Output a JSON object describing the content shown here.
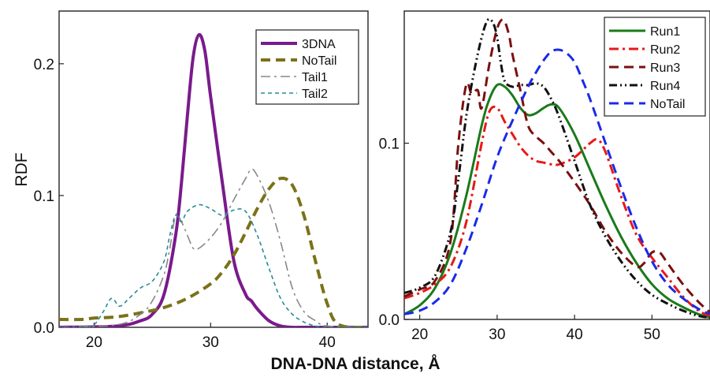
{
  "shared_xlabel": "DNA-DNA distance, Å",
  "chart_data": [
    {
      "type": "line",
      "ylabel": "RDF",
      "xlim": [
        17,
        43.5
      ],
      "ylim": [
        0,
        0.24
      ],
      "xticks": [
        20,
        30,
        40
      ],
      "xtick_labels": [
        "20",
        "30",
        "40"
      ],
      "yticks": [
        0.0,
        0.1,
        0.2
      ],
      "ytick_labels": [
        "0.0",
        "0.1",
        "0.2"
      ],
      "legend": "top-right",
      "series": [
        {
          "name": "3DNA",
          "color": "#7a1a8c",
          "dash": "solid",
          "width": 4,
          "x": [
            17,
            22,
            24,
            25,
            26,
            27,
            27.5,
            28,
            28.5,
            29,
            29.5,
            30,
            31,
            32,
            33,
            33.5,
            34,
            35,
            36,
            37,
            38,
            43.5
          ],
          "y": [
            0,
            0.001,
            0.005,
            0.01,
            0.025,
            0.07,
            0.11,
            0.16,
            0.205,
            0.222,
            0.21,
            0.175,
            0.11,
            0.05,
            0.025,
            0.02,
            0.014,
            0.005,
            0.001,
            0,
            0,
            0
          ]
        },
        {
          "name": "NoTail",
          "color": "#7a7218",
          "dash": "dash",
          "width": 4,
          "x": [
            17,
            19,
            20,
            22,
            24,
            26,
            28,
            30,
            31,
            32,
            33,
            34,
            35,
            36,
            37,
            38,
            39,
            40,
            41,
            43.5
          ],
          "y": [
            0.006,
            0.006,
            0.007,
            0.008,
            0.011,
            0.015,
            0.022,
            0.033,
            0.042,
            0.055,
            0.072,
            0.09,
            0.105,
            0.113,
            0.108,
            0.085,
            0.05,
            0.018,
            0.002,
            0
          ]
        },
        {
          "name": "Tail1",
          "color": "#888888",
          "dash": "dashdot",
          "width": 1.6,
          "x": [
            17,
            22,
            24,
            25,
            26,
            26.5,
            27,
            27.5,
            28,
            28.5,
            29,
            30,
            31,
            32,
            33,
            33.5,
            34,
            35,
            36,
            37,
            38,
            39,
            40,
            43.5
          ],
          "y": [
            0,
            0.002,
            0.01,
            0.02,
            0.04,
            0.06,
            0.085,
            0.08,
            0.07,
            0.06,
            0.06,
            0.068,
            0.08,
            0.097,
            0.113,
            0.12,
            0.115,
            0.095,
            0.065,
            0.03,
            0.012,
            0.005,
            0.001,
            0
          ]
        },
        {
          "name": "Tail2",
          "color": "#2a8a95",
          "dash": "finedash",
          "width": 1.6,
          "x": [
            17,
            19,
            20,
            20.8,
            21.5,
            22.2,
            23,
            24,
            25,
            26,
            26.5,
            27,
            27.5,
            28,
            29,
            30,
            31,
            32,
            33,
            34,
            35,
            36,
            37,
            38,
            39,
            40,
            43.5
          ],
          "y": [
            0,
            0,
            0.002,
            0.012,
            0.022,
            0.016,
            0.022,
            0.03,
            0.035,
            0.05,
            0.07,
            0.085,
            0.08,
            0.088,
            0.093,
            0.09,
            0.085,
            0.089,
            0.088,
            0.07,
            0.045,
            0.022,
            0.01,
            0.004,
            0.001,
            0,
            0
          ]
        }
      ],
      "legend_entries": [
        "3DNA",
        "NoTail",
        "Tail1",
        "Tail2"
      ]
    },
    {
      "type": "line",
      "xlim": [
        18,
        57.5
      ],
      "ylim": [
        0,
        0.175
      ],
      "xticks": [
        20,
        30,
        40,
        50
      ],
      "xtick_labels": [
        "20",
        "30",
        "40",
        "50"
      ],
      "yticks": [
        0.0,
        0.1
      ],
      "ytick_labels": [
        "0.0",
        "0.1"
      ],
      "legend": "top-right",
      "series": [
        {
          "name": "Run1",
          "color": "#1a7a1a",
          "dash": "solid",
          "width": 3,
          "x": [
            18,
            20,
            22,
            24,
            26,
            28,
            29,
            30,
            31,
            32,
            33,
            34,
            35,
            36,
            37,
            38,
            40,
            42,
            44,
            46,
            48,
            50,
            52,
            54,
            56,
            57.5
          ],
          "y": [
            0.003,
            0.008,
            0.018,
            0.038,
            0.07,
            0.11,
            0.125,
            0.133,
            0.132,
            0.127,
            0.12,
            0.116,
            0.117,
            0.12,
            0.122,
            0.12,
            0.105,
            0.085,
            0.065,
            0.047,
            0.032,
            0.02,
            0.012,
            0.007,
            0.003,
            0.001
          ]
        },
        {
          "name": "Run2",
          "color": "#e81818",
          "dash": "dashdot",
          "width": 3,
          "x": [
            18,
            20,
            22,
            24,
            26,
            28,
            29,
            30,
            31,
            32,
            33,
            34,
            35,
            36,
            37,
            38,
            40,
            42,
            43,
            44,
            46,
            48,
            50,
            52,
            54,
            56,
            57.5
          ],
          "y": [
            0.012,
            0.015,
            0.02,
            0.03,
            0.055,
            0.1,
            0.118,
            0.12,
            0.112,
            0.105,
            0.098,
            0.093,
            0.09,
            0.089,
            0.088,
            0.088,
            0.092,
            0.1,
            0.102,
            0.095,
            0.07,
            0.048,
            0.035,
            0.024,
            0.013,
            0.005,
            0.002
          ]
        },
        {
          "name": "Run3",
          "color": "#7a1010",
          "dash": "dash",
          "width": 3,
          "x": [
            18,
            20,
            22,
            24,
            25,
            26,
            26.7,
            27.5,
            28,
            29,
            30,
            30.8,
            31.5,
            32,
            33,
            34,
            35,
            36,
            37,
            38,
            40,
            42,
            44,
            46,
            48,
            49,
            50,
            51,
            52,
            54,
            56,
            57.5
          ],
          "y": [
            0.013,
            0.017,
            0.022,
            0.045,
            0.1,
            0.133,
            0.128,
            0.13,
            0.12,
            0.145,
            0.165,
            0.17,
            0.162,
            0.15,
            0.13,
            0.11,
            0.104,
            0.1,
            0.095,
            0.09,
            0.078,
            0.065,
            0.05,
            0.038,
            0.03,
            0.032,
            0.038,
            0.038,
            0.032,
            0.02,
            0.01,
            0.004
          ]
        },
        {
          "name": "Run4",
          "color": "#111111",
          "dash": "dashdotdot",
          "width": 3,
          "x": [
            18,
            20,
            22,
            24,
            25,
            26,
            27,
            28,
            28.8,
            29.5,
            30,
            30.5,
            31,
            32,
            33,
            34,
            35,
            36,
            37,
            38,
            40,
            42,
            44,
            46,
            48,
            50,
            52,
            54,
            56,
            57.5
          ],
          "y": [
            0.015,
            0.018,
            0.025,
            0.05,
            0.08,
            0.115,
            0.14,
            0.16,
            0.17,
            0.168,
            0.16,
            0.145,
            0.135,
            0.132,
            0.133,
            0.133,
            0.134,
            0.132,
            0.125,
            0.115,
            0.09,
            0.065,
            0.047,
            0.033,
            0.022,
            0.014,
            0.009,
            0.005,
            0.002,
            0.001
          ]
        },
        {
          "name": "NoTail",
          "color": "#1a2ae8",
          "dash": "dash",
          "width": 3,
          "x": [
            18,
            20,
            22,
            24,
            26,
            28,
            30,
            32,
            34,
            35,
            36,
            37,
            38,
            39,
            40,
            41,
            42,
            44,
            46,
            48,
            50,
            52,
            54,
            56,
            57.5
          ],
          "y": [
            0.003,
            0.005,
            0.01,
            0.02,
            0.04,
            0.065,
            0.092,
            0.113,
            0.132,
            0.14,
            0.147,
            0.152,
            0.153,
            0.151,
            0.146,
            0.136,
            0.125,
            0.1,
            0.075,
            0.052,
            0.033,
            0.02,
            0.012,
            0.006,
            0.003
          ]
        }
      ],
      "legend_entries": [
        "Run1",
        "Run2",
        "Run3",
        "Run4",
        "NoTail"
      ]
    }
  ]
}
